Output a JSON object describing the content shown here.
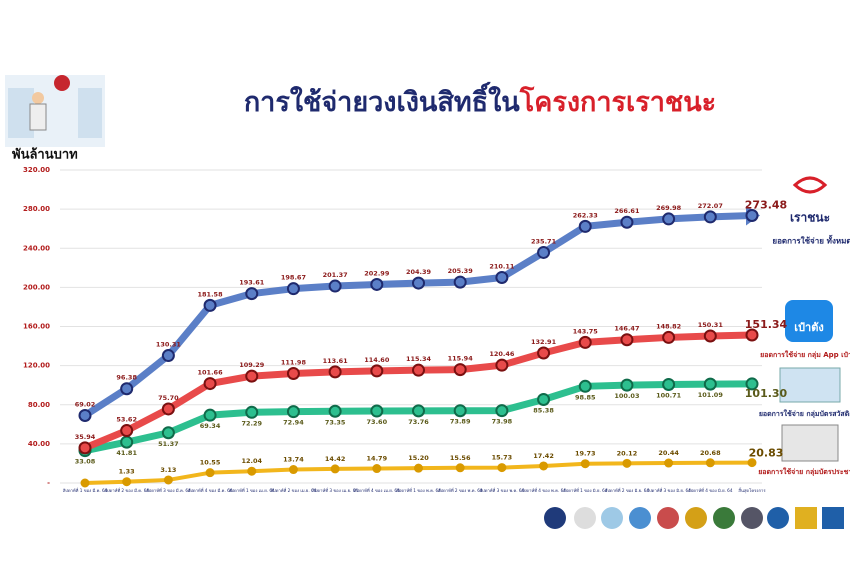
{
  "unit_label": "พันล้านบาท",
  "chart_data": {
    "type": "line",
    "title_parts": [
      "การใช้จ่ายวงเงินสิทธิ์ใน",
      "โครงการเราชนะ"
    ],
    "categories": [
      "สัปดาห์ที่ 1 ของ มี.ค. 64",
      "สัปดาห์ที่ 2 ของ มี.ค. 64",
      "สัปดาห์ที่ 3 ของ มี.ค. 64",
      "สัปดาห์ที่ 4 ของ มี.ค. 64",
      "สัปดาห์ที่ 1 ของ เม.ย. 64",
      "สัปดาห์ที่ 2 ของ เม.ย. 64",
      "สัปดาห์ที่ 3 ของ เม.ย. 64",
      "สัปดาห์ที่ 4 ของ เม.ย. 64",
      "สัปดาห์ที่ 1 ของ พ.ค. 64",
      "สัปดาห์ที่ 2 ของ พ.ค. 64",
      "สัปดาห์ที่ 3 ของ พ.ค. 64",
      "สัปดาห์ที่ 4 ของ พ.ค. 64",
      "สัปดาห์ที่ 1 ของ มิ.ย. 64",
      "สัปดาห์ที่ 2 ของ มิ.ย. 64",
      "สัปดาห์ที่ 3 ของ มิ.ย. 64",
      "สัปดาห์ที่ 4 ของ มิ.ย. 64",
      "สิ้นสุดโครงการ"
    ],
    "series": [
      {
        "name": "ยอดการใช้จ่าย ทั้งหมด",
        "color": "#5b7fc7",
        "marker": "#1f2a6e",
        "values": [
          69.02,
          96.38,
          130.31,
          181.58,
          193.61,
          198.67,
          201.37,
          202.99,
          204.39,
          205.39,
          210.11,
          235.71,
          262.33,
          266.61,
          269.98,
          272.07,
          273.48
        ],
        "value_labels": [
          "69.02",
          "96.38",
          "130.31",
          "181.58",
          "193.61",
          "198.67",
          "201.37",
          "202.99",
          "204.39",
          "205.39",
          "210.11",
          "235.71",
          "262.33",
          "266.61",
          "269.98",
          "272.07",
          "273.48"
        ]
      },
      {
        "name": "ยอดการใช้จ่าย กลุ่ม App เป๋าตัง",
        "color": "#e84a4a",
        "marker": "#7a1010",
        "values": [
          35.94,
          53.62,
          75.7,
          101.66,
          109.29,
          111.98,
          113.61,
          114.6,
          115.34,
          115.94,
          120.46,
          132.91,
          143.75,
          146.47,
          148.82,
          150.31,
          151.34
        ],
        "value_labels": [
          "35.94",
          "53.62",
          "75.70",
          "101.66",
          "109.29",
          "111.98",
          "113.61",
          "114.60",
          "115.34",
          "115.94",
          "120.46",
          "132.91",
          "143.75",
          "146.47",
          "148.82",
          "150.31",
          "151.34"
        ]
      },
      {
        "name": "ยอดการใช้จ่าย กลุ่มบัตรสวัสดิการ",
        "color": "#2dbf8f",
        "marker": "#0f6b4a",
        "values": [
          33.08,
          41.81,
          51.37,
          69.34,
          72.29,
          72.94,
          73.35,
          73.6,
          73.76,
          73.89,
          73.98,
          85.38,
          98.85,
          100.03,
          100.71,
          101.09,
          101.3
        ],
        "value_labels": [
          "33.08",
          "41.81",
          "51.37",
          "69.34",
          "72.29",
          "72.94",
          "73.35",
          "73.60",
          "73.76",
          "73.89",
          "73.98",
          "85.38",
          "98.85",
          "100.03",
          "100.71",
          "101.09",
          "101.30"
        ]
      },
      {
        "name": "ยอดการใช้จ่าย กลุ่มบัตรประชาชน",
        "color": "#f2b61c",
        "marker": "#d99a00",
        "values": [
          0,
          1.33,
          3.13,
          10.55,
          12.04,
          13.74,
          14.42,
          14.79,
          15.2,
          15.56,
          15.73,
          17.42,
          19.73,
          20.12,
          20.44,
          20.68,
          20.83
        ],
        "value_labels": [
          null,
          "1.33",
          "3.13",
          "10.55",
          "12.04",
          "13.74",
          "14.42",
          "14.79",
          "15.20",
          "15.56",
          "15.73",
          "17.42",
          "19.73",
          "20.12",
          "20.44",
          "20.68",
          "20.83"
        ]
      }
    ],
    "ylim": [
      0,
      320
    ],
    "yticks": [
      {
        "value": 0,
        "label": "-"
      },
      {
        "value": 40,
        "label": "40.00"
      },
      {
        "value": 80,
        "label": "80.00"
      },
      {
        "value": 120,
        "label": "120.00"
      },
      {
        "value": 160,
        "label": "160.00"
      },
      {
        "value": 200,
        "label": "200.00"
      },
      {
        "value": 240,
        "label": "240.00"
      },
      {
        "value": 280,
        "label": "280.00"
      },
      {
        "value": 320,
        "label": "320.00"
      }
    ],
    "grid": true
  },
  "legend": {
    "logo_rachana": "เราชนะ",
    "logo_paotang": "เป๋าตัง"
  }
}
